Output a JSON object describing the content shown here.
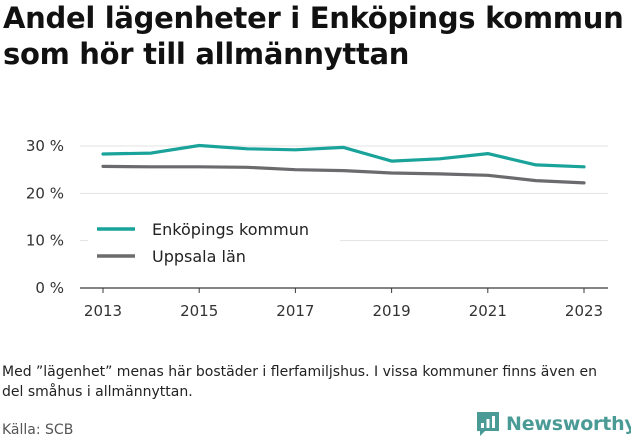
{
  "header": {
    "title": "Andel lägenheter i Enköpings kommun som hör till allmännyttan"
  },
  "chart_data": {
    "type": "line",
    "x": [
      2013,
      2014,
      2015,
      2016,
      2017,
      2018,
      2019,
      2020,
      2021,
      2022,
      2023
    ],
    "x_ticks": [
      2013,
      2015,
      2017,
      2019,
      2021,
      2023
    ],
    "x_tick_labels": [
      "2013",
      "2015",
      "2017",
      "2019",
      "2021",
      "2023"
    ],
    "ylim": [
      0,
      30
    ],
    "y_ticks": [
      0,
      10,
      20,
      30
    ],
    "y_tick_labels": [
      "0 %",
      "10 %",
      "20 %",
      "30 %"
    ],
    "grid": true,
    "legend_position": "lower-left",
    "series": [
      {
        "name": "Enköpings kommun",
        "color": "#1aa39a",
        "values": [
          28.3,
          28.5,
          30.1,
          29.4,
          29.2,
          29.7,
          26.8,
          27.3,
          28.4,
          26.0,
          25.6
        ]
      },
      {
        "name": "Uppsala län",
        "color": "#6b6b6e",
        "values": [
          25.7,
          25.6,
          25.6,
          25.5,
          25.0,
          24.8,
          24.3,
          24.1,
          23.8,
          22.7,
          22.2
        ]
      }
    ]
  },
  "footer": {
    "note": "Med ”lägenhet” menas här bostäder i flerfamiljshus. I vissa kommuner finns även en del småhus i allmännyttan.",
    "source": "Källa: SCB",
    "brand": "Newsworthy",
    "brand_color": "#4a9a96",
    "brand_icon": "bar-chart-speech-bubble-icon"
  }
}
